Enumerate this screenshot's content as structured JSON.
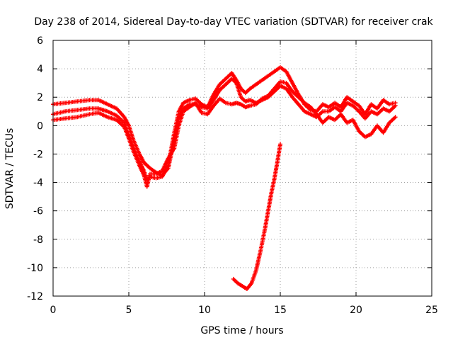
{
  "chart_data": {
    "type": "scatter",
    "title": "Day 238 of 2014, Sidereal Day-to-day VTEC variation (SDTVAR) for receiver crak",
    "xlabel": "GPS time / hours",
    "ylabel": "SDTVAR / TECUs",
    "xlim": [
      0,
      25
    ],
    "ylim": [
      -12,
      6
    ],
    "xticks": [
      0,
      5,
      10,
      15,
      20,
      25
    ],
    "yticks": [
      -12,
      -10,
      -8,
      -6,
      -4,
      -2,
      0,
      2,
      4,
      6
    ],
    "grid": true,
    "legend": "none",
    "marker": "plus",
    "color": "#ff0000",
    "series": [
      {
        "name": "upper track A",
        "points": [
          [
            0.0,
            1.5
          ],
          [
            0.8,
            1.6
          ],
          [
            1.6,
            1.7
          ],
          [
            2.4,
            1.8
          ],
          [
            3.0,
            1.8
          ],
          [
            3.6,
            1.5
          ],
          [
            4.2,
            1.2
          ],
          [
            4.7,
            0.6
          ],
          [
            5.0,
            0.0
          ],
          [
            5.3,
            -1.0
          ],
          [
            5.7,
            -2.0
          ],
          [
            6.0,
            -2.6
          ],
          [
            6.4,
            -3.0
          ],
          [
            6.8,
            -3.3
          ],
          [
            7.2,
            -3.5
          ],
          [
            7.6,
            -3.0
          ],
          [
            8.0,
            -1.0
          ],
          [
            8.3,
            0.5
          ],
          [
            8.6,
            1.2
          ],
          [
            9.0,
            1.5
          ],
          [
            9.4,
            1.5
          ],
          [
            9.8,
            1.3
          ],
          [
            10.2,
            1.2
          ],
          [
            10.6,
            1.8
          ],
          [
            11.0,
            2.5
          ],
          [
            11.4,
            2.9
          ],
          [
            11.8,
            3.3
          ],
          [
            12.1,
            3.0
          ],
          [
            12.4,
            2.0
          ],
          [
            12.7,
            1.7
          ],
          [
            13.0,
            1.8
          ],
          [
            13.4,
            1.6
          ],
          [
            13.8,
            1.8
          ],
          [
            14.2,
            2.0
          ],
          [
            14.6,
            2.4
          ],
          [
            15.0,
            2.8
          ],
          [
            15.4,
            2.6
          ],
          [
            15.8,
            2.0
          ],
          [
            16.2,
            1.5
          ],
          [
            16.6,
            1.0
          ],
          [
            17.0,
            0.8
          ],
          [
            17.4,
            0.6
          ],
          [
            17.8,
            1.0
          ],
          [
            18.2,
            1.0
          ],
          [
            18.6,
            1.3
          ],
          [
            19.0,
            1.0
          ],
          [
            19.4,
            1.6
          ],
          [
            19.8,
            1.4
          ],
          [
            20.2,
            1.0
          ],
          [
            20.6,
            0.5
          ],
          [
            21.0,
            1.0
          ],
          [
            21.4,
            0.8
          ],
          [
            21.8,
            1.2
          ],
          [
            22.2,
            1.0
          ],
          [
            22.6,
            1.4
          ]
        ]
      },
      {
        "name": "upper track B",
        "points": [
          [
            0.0,
            0.8
          ],
          [
            0.8,
            1.0
          ],
          [
            1.6,
            1.1
          ],
          [
            2.4,
            1.2
          ],
          [
            3.0,
            1.2
          ],
          [
            3.6,
            1.0
          ],
          [
            4.2,
            0.7
          ],
          [
            4.7,
            0.2
          ],
          [
            5.0,
            -0.6
          ],
          [
            5.3,
            -1.5
          ],
          [
            5.7,
            -2.5
          ],
          [
            6.0,
            -3.2
          ],
          [
            6.2,
            -3.8
          ],
          [
            6.4,
            -3.6
          ],
          [
            6.8,
            -3.7
          ],
          [
            7.2,
            -3.6
          ],
          [
            7.6,
            -2.8
          ],
          [
            8.0,
            -0.5
          ],
          [
            8.3,
            1.0
          ],
          [
            8.6,
            1.6
          ],
          [
            9.0,
            1.8
          ],
          [
            9.4,
            1.9
          ],
          [
            9.8,
            1.5
          ],
          [
            10.2,
            1.3
          ],
          [
            10.6,
            2.2
          ],
          [
            11.0,
            2.9
          ],
          [
            11.4,
            3.3
          ],
          [
            11.8,
            3.7
          ],
          [
            12.1,
            3.2
          ],
          [
            12.4,
            2.6
          ],
          [
            12.7,
            2.3
          ],
          [
            13.0,
            2.6
          ],
          [
            13.4,
            2.9
          ],
          [
            13.8,
            3.2
          ],
          [
            14.2,
            3.5
          ],
          [
            14.6,
            3.8
          ],
          [
            15.0,
            4.1
          ],
          [
            15.4,
            3.8
          ],
          [
            15.8,
            3.0
          ],
          [
            16.2,
            2.2
          ],
          [
            16.6,
            1.5
          ],
          [
            17.0,
            1.1
          ],
          [
            17.4,
            1.0
          ],
          [
            17.8,
            1.5
          ],
          [
            18.2,
            1.3
          ],
          [
            18.6,
            1.6
          ],
          [
            19.0,
            1.3
          ],
          [
            19.4,
            2.0
          ],
          [
            19.8,
            1.7
          ],
          [
            20.2,
            1.4
          ],
          [
            20.6,
            0.8
          ],
          [
            21.0,
            1.5
          ],
          [
            21.4,
            1.2
          ],
          [
            21.8,
            1.8
          ],
          [
            22.2,
            1.5
          ],
          [
            22.6,
            1.6
          ]
        ]
      },
      {
        "name": "lower track",
        "points": [
          [
            0.0,
            0.4
          ],
          [
            0.8,
            0.5
          ],
          [
            1.6,
            0.6
          ],
          [
            2.4,
            0.8
          ],
          [
            3.0,
            0.9
          ],
          [
            3.6,
            0.6
          ],
          [
            4.2,
            0.4
          ],
          [
            4.7,
            -0.1
          ],
          [
            5.0,
            -0.9
          ],
          [
            5.3,
            -1.8
          ],
          [
            5.7,
            -2.8
          ],
          [
            6.0,
            -3.5
          ],
          [
            6.2,
            -4.3
          ],
          [
            6.4,
            -3.4
          ],
          [
            6.8,
            -3.4
          ],
          [
            7.2,
            -3.2
          ],
          [
            7.6,
            -2.3
          ],
          [
            8.0,
            -1.6
          ],
          [
            8.3,
            0.0
          ],
          [
            8.6,
            1.0
          ],
          [
            9.0,
            1.3
          ],
          [
            9.4,
            1.6
          ],
          [
            9.8,
            0.9
          ],
          [
            10.2,
            0.8
          ],
          [
            10.6,
            1.4
          ],
          [
            11.0,
            1.9
          ],
          [
            11.4,
            1.6
          ],
          [
            11.8,
            1.5
          ],
          [
            12.1,
            1.6
          ],
          [
            12.4,
            1.5
          ],
          [
            12.7,
            1.3
          ],
          [
            13.0,
            1.4
          ],
          [
            13.4,
            1.5
          ],
          [
            13.8,
            1.9
          ],
          [
            14.2,
            2.1
          ],
          [
            14.6,
            2.6
          ],
          [
            15.0,
            3.1
          ],
          [
            15.4,
            3.0
          ],
          [
            15.8,
            2.4
          ],
          [
            16.2,
            2.0
          ],
          [
            16.6,
            1.6
          ],
          [
            17.0,
            1.3
          ],
          [
            17.4,
            0.8
          ],
          [
            17.8,
            0.2
          ],
          [
            18.2,
            0.6
          ],
          [
            18.6,
            0.4
          ],
          [
            19.0,
            0.8
          ],
          [
            19.4,
            0.2
          ],
          [
            19.8,
            0.4
          ],
          [
            20.2,
            -0.4
          ],
          [
            20.6,
            -0.8
          ],
          [
            21.0,
            -0.6
          ],
          [
            21.4,
            0.0
          ],
          [
            21.8,
            -0.5
          ],
          [
            22.2,
            0.2
          ],
          [
            22.6,
            0.6
          ]
        ]
      },
      {
        "name": "dip track",
        "points": [
          [
            11.9,
            -10.8
          ],
          [
            12.2,
            -11.1
          ],
          [
            12.5,
            -11.3
          ],
          [
            12.8,
            -11.5
          ],
          [
            13.1,
            -11.1
          ],
          [
            13.4,
            -10.2
          ],
          [
            13.7,
            -8.8
          ],
          [
            14.0,
            -7.2
          ],
          [
            14.2,
            -6.0
          ],
          [
            14.4,
            -4.8
          ],
          [
            14.6,
            -3.8
          ],
          [
            14.8,
            -2.6
          ],
          [
            15.0,
            -1.3
          ]
        ]
      }
    ]
  }
}
